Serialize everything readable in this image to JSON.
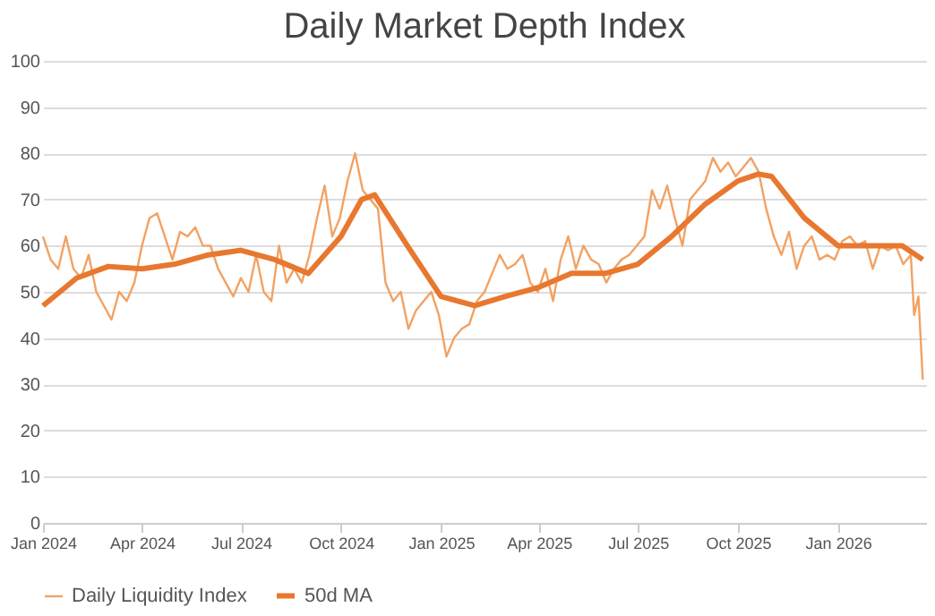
{
  "chart_data": {
    "type": "line",
    "title": "Daily Market Depth Index",
    "xlim": [
      "2024-01-01",
      "2026-03-23"
    ],
    "xticks": [
      {
        "value": "2024-01",
        "label": "Jan 2024"
      },
      {
        "value": "2024-04",
        "label": "Apr 2024"
      },
      {
        "value": "2024-07",
        "label": "Jul 2024"
      },
      {
        "value": "2024-10",
        "label": "Oct 2024"
      },
      {
        "value": "2025-01",
        "label": "Jan 2025"
      },
      {
        "value": "2025-04",
        "label": "Apr 2025"
      },
      {
        "value": "2025-07",
        "label": "Jul 2025"
      },
      {
        "value": "2025-10",
        "label": "Oct 2025"
      },
      {
        "value": "2026-01",
        "label": "Jan 2026"
      }
    ],
    "ylim": [
      0,
      100
    ],
    "yticks": [
      0,
      10,
      20,
      30,
      40,
      50,
      60,
      70,
      80,
      90,
      100
    ],
    "grid": "y",
    "legend": "bottom",
    "marker": "none",
    "line_style": "solid",
    "series": [
      {
        "name": "Daily Liquidity Index",
        "color": "#f2a263",
        "x": [
          "2024-01-01",
          "2024-01-08",
          "2024-01-15",
          "2024-01-22",
          "2024-01-29",
          "2024-02-05",
          "2024-02-12",
          "2024-02-19",
          "2024-02-26",
          "2024-03-04",
          "2024-03-11",
          "2024-03-18",
          "2024-03-25",
          "2024-04-01",
          "2024-04-08",
          "2024-04-15",
          "2024-04-22",
          "2024-04-29",
          "2024-05-06",
          "2024-05-13",
          "2024-05-20",
          "2024-05-27",
          "2024-06-03",
          "2024-06-10",
          "2024-06-17",
          "2024-06-24",
          "2024-07-01",
          "2024-07-08",
          "2024-07-15",
          "2024-07-22",
          "2024-07-29",
          "2024-08-05",
          "2024-08-12",
          "2024-08-19",
          "2024-08-26",
          "2024-09-02",
          "2024-09-09",
          "2024-09-16",
          "2024-09-23",
          "2024-09-30",
          "2024-10-07",
          "2024-10-14",
          "2024-10-21",
          "2024-10-28",
          "2024-11-04",
          "2024-11-11",
          "2024-11-18",
          "2024-11-25",
          "2024-12-02",
          "2024-12-09",
          "2024-12-16",
          "2024-12-23",
          "2024-12-30",
          "2025-01-06",
          "2025-01-13",
          "2025-01-20",
          "2025-01-27",
          "2025-02-03",
          "2025-02-10",
          "2025-02-17",
          "2025-02-24",
          "2025-03-03",
          "2025-03-10",
          "2025-03-17",
          "2025-03-24",
          "2025-03-31",
          "2025-04-07",
          "2025-04-14",
          "2025-04-21",
          "2025-04-28",
          "2025-05-05",
          "2025-05-12",
          "2025-05-19",
          "2025-05-26",
          "2025-06-02",
          "2025-06-09",
          "2025-06-16",
          "2025-06-23",
          "2025-06-30",
          "2025-07-07",
          "2025-07-14",
          "2025-07-21",
          "2025-07-28",
          "2025-08-04",
          "2025-08-11",
          "2025-08-18",
          "2025-08-25",
          "2025-09-01",
          "2025-09-08",
          "2025-09-15",
          "2025-09-22",
          "2025-09-29",
          "2025-10-06",
          "2025-10-13",
          "2025-10-20",
          "2025-10-27",
          "2025-11-03",
          "2025-11-10",
          "2025-11-17",
          "2025-11-24",
          "2025-12-01",
          "2025-12-08",
          "2025-12-15",
          "2025-12-22",
          "2025-12-29",
          "2026-01-05",
          "2026-01-12",
          "2026-01-19",
          "2026-01-26",
          "2026-02-02",
          "2026-02-09",
          "2026-02-16",
          "2026-02-23",
          "2026-03-02",
          "2026-03-09",
          "2026-03-12",
          "2026-03-16",
          "2026-03-20"
        ],
        "values": [
          62,
          57,
          55,
          62,
          55,
          53,
          58,
          50,
          47,
          44,
          50,
          48,
          52,
          60,
          66,
          67,
          62,
          57,
          63,
          62,
          64,
          60,
          60,
          55,
          52,
          49,
          53,
          50,
          58,
          50,
          48,
          60,
          52,
          55,
          52,
          58,
          66,
          73,
          62,
          66,
          74,
          80,
          72,
          70,
          68,
          52,
          48,
          50,
          42,
          46,
          48,
          50,
          45,
          36,
          40,
          42,
          43,
          48,
          50,
          54,
          58,
          55,
          56,
          58,
          52,
          50,
          55,
          48,
          57,
          62,
          55,
          60,
          57,
          56,
          52,
          55,
          57,
          58,
          60,
          62,
          72,
          68,
          73,
          66,
          60,
          70,
          72,
          74,
          79,
          76,
          78,
          75,
          77,
          79,
          76,
          68,
          62,
          58,
          63,
          55,
          60,
          62,
          57,
          58,
          57,
          61,
          62,
          60,
          61,
          55,
          60,
          59,
          60,
          56,
          58,
          45,
          49,
          31
        ]
      },
      {
        "name": "50d MA",
        "color": "#e8782f",
        "x": [
          "2024-01-01",
          "2024-02-01",
          "2024-03-01",
          "2024-04-01",
          "2024-05-01",
          "2024-06-01",
          "2024-07-01",
          "2024-08-01",
          "2024-09-01",
          "2024-10-01",
          "2024-10-20",
          "2024-11-01",
          "2024-12-01",
          "2025-01-01",
          "2025-02-01",
          "2025-03-01",
          "2025-04-01",
          "2025-05-01",
          "2025-06-01",
          "2025-07-01",
          "2025-08-01",
          "2025-09-01",
          "2025-10-01",
          "2025-10-20",
          "2025-11-01",
          "2025-12-01",
          "2026-01-01",
          "2026-02-01",
          "2026-03-01",
          "2026-03-20"
        ],
        "values": [
          47,
          53,
          55.5,
          55,
          56,
          58,
          59,
          57,
          54,
          62,
          70,
          71,
          60,
          49,
          47,
          49,
          51,
          54,
          54,
          56,
          62,
          69,
          74,
          75.5,
          75,
          66,
          60,
          60,
          60,
          57
        ]
      }
    ]
  }
}
